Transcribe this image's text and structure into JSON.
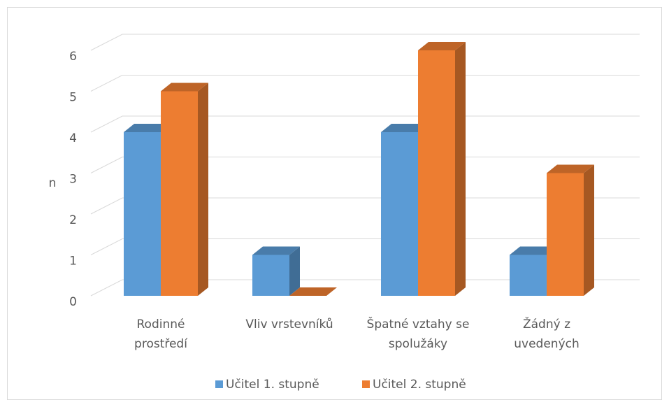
{
  "chart_data": {
    "type": "bar3d",
    "y_label": "n",
    "categories": [
      "Rodinné prostředí",
      "Vliv vrstevníků",
      "Špatné vztahy se spolužáky",
      "Žádný z uvedených"
    ],
    "series": [
      {
        "name": "Učitel 1. stupně",
        "color": "#5b9bd5",
        "values": [
          4,
          1,
          4,
          1
        ]
      },
      {
        "name": "Učitel 2. stupně",
        "color": "#ed7d31",
        "values": [
          5,
          0,
          6,
          3
        ]
      }
    ],
    "ylim": [
      0,
      6
    ],
    "yticks": [
      0,
      1,
      2,
      3,
      4,
      5,
      6
    ],
    "grid": true,
    "legend": "bottom"
  }
}
